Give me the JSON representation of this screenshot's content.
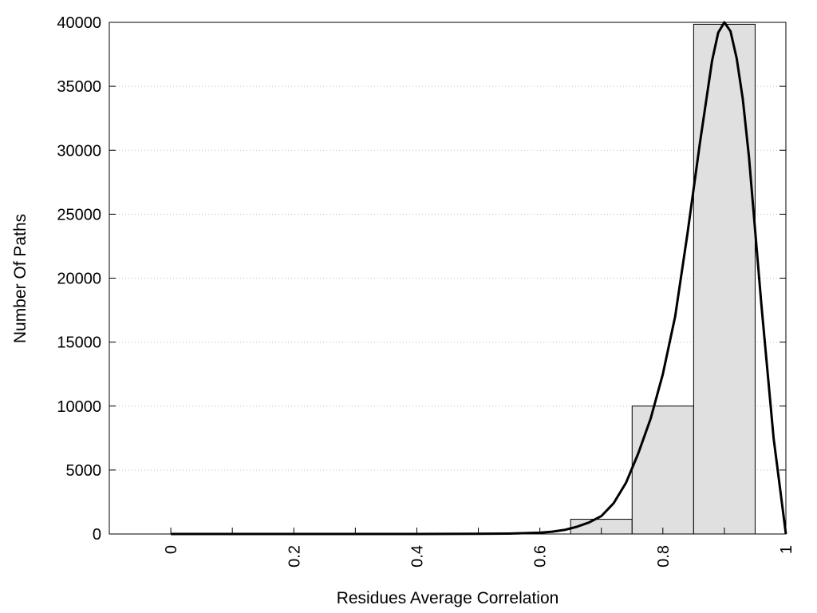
{
  "chart_data": {
    "type": "bar",
    "title": "",
    "xlabel": "Residues Average Correlation",
    "ylabel": "Number Of Paths",
    "xlim": [
      -0.1,
      1.0
    ],
    "ylim": [
      0,
      40000
    ],
    "grid": {
      "y": true,
      "x": false,
      "style": "dotted"
    },
    "x_ticks": [
      0,
      0.2,
      0.4,
      0.6,
      0.8,
      1
    ],
    "x_tick_labels": [
      "0",
      "0.2",
      "0.4",
      "0.6",
      "0.8",
      "1"
    ],
    "x_minor_ticks": [
      0.1,
      0.3,
      0.5,
      0.7,
      0.9
    ],
    "y_ticks": [
      0,
      5000,
      10000,
      15000,
      20000,
      25000,
      30000,
      35000,
      40000
    ],
    "y_tick_labels": [
      "0",
      "5000",
      "10000",
      "15000",
      "20000",
      "25000",
      "30000",
      "35000",
      "40000"
    ],
    "bins": [
      {
        "x0": 0.65,
        "x1": 0.75,
        "value": 1150
      },
      {
        "x0": 0.75,
        "x1": 0.85,
        "value": 10000
      },
      {
        "x0": 0.85,
        "x1": 0.95,
        "value": 39850
      }
    ],
    "bar_color": "#e0e0e0",
    "curve": {
      "type": "line",
      "color": "#000000",
      "x": [
        0,
        0.1,
        0.2,
        0.3,
        0.4,
        0.5,
        0.55,
        0.6,
        0.62,
        0.64,
        0.66,
        0.68,
        0.7,
        0.72,
        0.74,
        0.76,
        0.78,
        0.8,
        0.82,
        0.84,
        0.86,
        0.88,
        0.89,
        0.9,
        0.91,
        0.92,
        0.93,
        0.94,
        0.96,
        0.98,
        1.0
      ],
      "y": [
        0,
        0,
        0,
        0,
        0,
        10,
        30,
        100,
        180,
        320,
        560,
        900,
        1400,
        2400,
        4000,
        6300,
        9000,
        12500,
        17000,
        23500,
        30500,
        37000,
        39200,
        40000,
        39300,
        37200,
        34000,
        29500,
        18000,
        7500,
        0
      ]
    }
  }
}
